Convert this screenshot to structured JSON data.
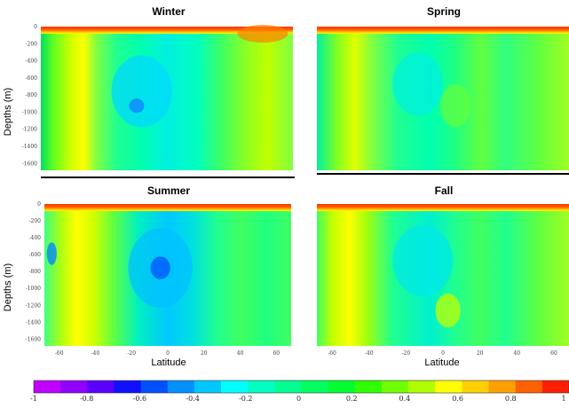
{
  "chart_data": [
    {
      "type": "heatmap",
      "title": "Winter",
      "ylabel": "Depths (m)",
      "xlabel": "",
      "yticks": [
        "0",
        "-200",
        "-400",
        "-600",
        "-800",
        "-1000",
        "-1200",
        "-1400",
        "-1600"
      ],
      "xticks": [],
      "ylim": [
        -1700,
        0
      ],
      "surface_band": "high (≈0.9–1.0)",
      "pattern": "yellow/green band at left, cyan core in centre, yellow-green at right"
    },
    {
      "type": "heatmap",
      "title": "Spring",
      "ylabel": "",
      "xlabel": "",
      "yticks": [],
      "xticks": [],
      "ylim": [
        -1700,
        0
      ],
      "surface_band": "high (≈0.9–1.0)",
      "pattern": "yellow band at left, green/cyan in middle, green-yellow at right"
    },
    {
      "type": "heatmap",
      "title": "Summer",
      "ylabel": "Depths (m)",
      "xlabel": "Latitude",
      "yticks": [
        "0",
        "-200",
        "-400",
        "-600",
        "-800",
        "-1000",
        "-1200",
        "-1400",
        "-1600"
      ],
      "xticks": [
        "-60",
        "-40",
        "-20",
        "0",
        "20",
        "40",
        "60"
      ],
      "ylim": [
        -1700,
        0
      ],
      "surface_band": "high (≈0.9–1.0)",
      "pattern": "yellow band at left, blue/cyan core near centre, green at right"
    },
    {
      "type": "heatmap",
      "title": "Fall",
      "ylabel": "",
      "xlabel": "Latitude",
      "yticks": [],
      "xticks": [
        "-60",
        "-40",
        "-20",
        "0",
        "20",
        "40",
        "60"
      ],
      "ylim": [
        -1700,
        0
      ],
      "surface_band": "high (≈0.9–1.0)",
      "pattern": "yellow band at left, cyan in middle, green-yellow at right"
    }
  ],
  "colorbar": {
    "ticks": [
      "-1",
      "-0.8",
      "-0.6",
      "-0.4",
      "-0.2",
      "0",
      "0.2",
      "0.4",
      "0.6",
      "0.8",
      "1"
    ],
    "range": [
      -1,
      1
    ],
    "colors": [
      "#c000ff",
      "#9000ff",
      "#5a00ff",
      "#1010ff",
      "#0050ff",
      "#0090ff",
      "#00c8ff",
      "#00ffff",
      "#00ffc0",
      "#00ff90",
      "#00ff60",
      "#00ff30",
      "#30ff00",
      "#70ff00",
      "#b0ff00",
      "#ffff00",
      "#ffd000",
      "#ffa000",
      "#ff6000",
      "#ff2000"
    ]
  }
}
